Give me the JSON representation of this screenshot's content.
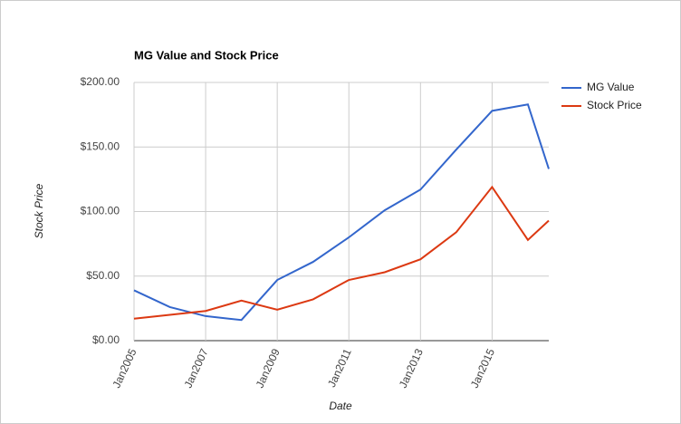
{
  "chart_data": {
    "type": "line",
    "title": "MG Value and Stock Price",
    "x_label": "Date",
    "y_label": "Stock Price",
    "x": [
      "2005-01",
      "2006-01",
      "2007-01",
      "2008-01",
      "2009-01",
      "2010-01",
      "2011-01",
      "2012-01",
      "2013-01",
      "2014-01",
      "2015-01",
      "2016-01",
      "2016-08"
    ],
    "series": [
      {
        "name": "MG Value",
        "color": "#3366cc",
        "values": [
          39,
          26,
          19,
          16,
          47,
          61,
          80,
          101,
          117,
          148,
          178,
          183,
          133
        ]
      },
      {
        "name": "Stock Price",
        "color": "#dc3912",
        "values": [
          17,
          20,
          23,
          31,
          24,
          32,
          47,
          53,
          63,
          84,
          119,
          78,
          93
        ]
      }
    ],
    "xlim": [
      "2005-01",
      "2016-08"
    ],
    "xticks": [
      {
        "value": "2005-01",
        "label": "Jan2005"
      },
      {
        "value": "2007-01",
        "label": "Jan2007"
      },
      {
        "value": "2009-01",
        "label": "Jan2009"
      },
      {
        "value": "2011-01",
        "label": "Jan2011"
      },
      {
        "value": "2013-01",
        "label": "Jan2013"
      },
      {
        "value": "2015-01",
        "label": "Jan2015"
      }
    ],
    "ylim": [
      0,
      200
    ],
    "yticks": [
      {
        "value": 0,
        "label": "$0.00"
      },
      {
        "value": 50,
        "label": "$50.00"
      },
      {
        "value": 100,
        "label": "$100.00"
      },
      {
        "value": 150,
        "label": "$150.00"
      },
      {
        "value": 200,
        "label": "$200.00"
      }
    ],
    "grid": true,
    "legend": "right"
  }
}
